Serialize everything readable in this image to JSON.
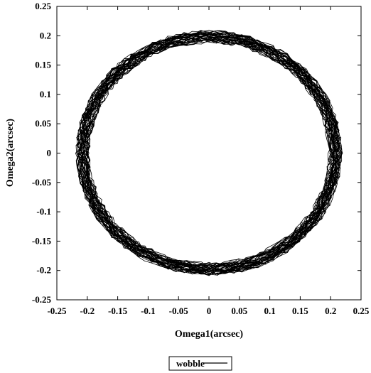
{
  "chart_data": {
    "type": "line",
    "xlabel": "Omega1(arcsec)",
    "ylabel": "Omega2(arcsec)",
    "xlim": [
      -0.25,
      0.25
    ],
    "ylim": [
      -0.25,
      0.25
    ],
    "x_ticks": [
      -0.25,
      -0.2,
      -0.15,
      -0.1,
      -0.05,
      0,
      0.05,
      0.1,
      0.15,
      0.2,
      0.25
    ],
    "y_ticks": [
      -0.25,
      -0.2,
      -0.15,
      -0.1,
      -0.05,
      0,
      0.05,
      0.1,
      0.15,
      0.2,
      0.25
    ],
    "x_tick_labels": [
      "-0.25",
      "-0.2",
      "-0.15",
      "-0.1",
      "-0.05",
      "0",
      "0.05",
      "0.1",
      "0.15",
      "0.2",
      "0.25"
    ],
    "y_tick_labels": [
      "-0.25",
      "-0.2",
      "-0.15",
      "-0.1",
      "-0.05",
      "0",
      "0.05",
      "0.1",
      "0.15",
      "0.2",
      "0.25"
    ],
    "grid": false,
    "legend_position": "bottom-center",
    "series": [
      {
        "name": "wobble",
        "color": "#000000",
        "shape": "noisy circular orbit",
        "center": [
          0,
          0
        ],
        "radius_min": 0.19,
        "radius_max": 0.215,
        "x_extent": [
          -0.22,
          0.22
        ],
        "y_extent": [
          -0.21,
          0.21
        ]
      }
    ]
  }
}
